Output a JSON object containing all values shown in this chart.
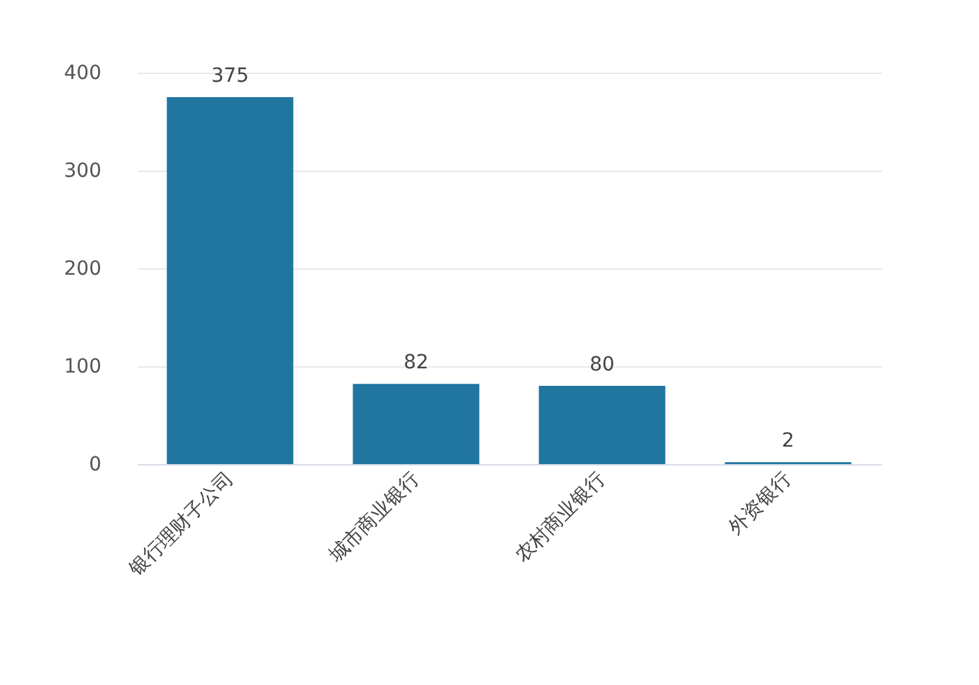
{
  "chart_data": {
    "type": "bar",
    "categories": [
      "银行理财子公司",
      "城市商业银行",
      "农村商业银行",
      "外资银行"
    ],
    "values": [
      375,
      82,
      80,
      2
    ],
    "color": "#2176a0",
    "ylim": [
      0,
      400
    ],
    "yticks": [
      0,
      100,
      200,
      300,
      400
    ],
    "grid": "y",
    "data_labels": true
  }
}
